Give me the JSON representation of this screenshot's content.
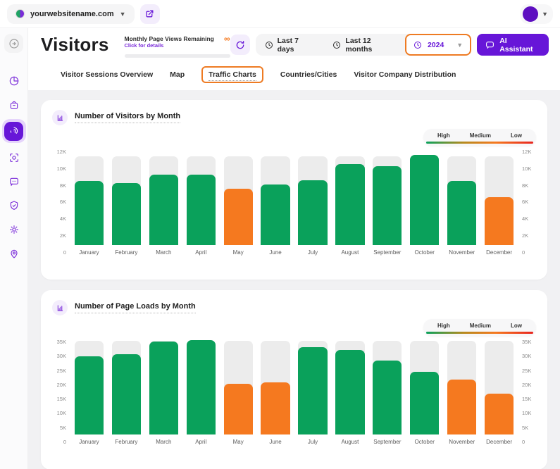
{
  "colors": {
    "brand_purple": "#6716d8",
    "brand_purple_light": "#f3edfc",
    "green": "#0aa15b",
    "orange": "#f5791f",
    "red": "#e8251f",
    "highlight_border": "#ee7b23",
    "bar_background": "#ececec",
    "page_background": "#f1f1f3"
  },
  "topbar": {
    "website_name": "yourwebsitename.com"
  },
  "header": {
    "title": "Visitors",
    "quota": {
      "label": "Monthly Page Views Remaining",
      "link": "Click for details",
      "value": "∞"
    },
    "range_buttons": {
      "last7": "Last 7 days",
      "last12": "Last 12 months",
      "year": "2024"
    },
    "ai_button": "AI Assistant"
  },
  "tabs": [
    {
      "label": "Visitor Sessions Overview",
      "active": false
    },
    {
      "label": "Map",
      "active": false
    },
    {
      "label": "Traffic Charts",
      "active": true
    },
    {
      "label": "Countries/Cities",
      "active": false
    },
    {
      "label": "Visitor Company Distribution",
      "active": false
    }
  ],
  "sidebar": {
    "items": [
      {
        "name": "collapse-sidebar",
        "active": false
      },
      {
        "name": "dashboard-pie",
        "active": false
      },
      {
        "name": "ecommerce-bag",
        "active": false
      },
      {
        "name": "visitors",
        "active": true
      },
      {
        "name": "behaviour-focus",
        "active": false
      },
      {
        "name": "communication-chat",
        "active": false
      },
      {
        "name": "privacy-shield",
        "active": false
      },
      {
        "name": "settings-gear",
        "active": false
      },
      {
        "name": "location-pin",
        "active": false
      }
    ]
  },
  "chart_data": [
    {
      "type": "bar",
      "title": "Number of Visitors by Month",
      "categories": [
        "January",
        "February",
        "March",
        "April",
        "May",
        "June",
        "July",
        "August",
        "September",
        "October",
        "November",
        "December"
      ],
      "values": [
        8000,
        7700,
        8800,
        8800,
        7000,
        7500,
        8100,
        10100,
        9800,
        11200,
        8000,
        6000
      ],
      "levels": [
        "high",
        "high",
        "high",
        "high",
        "medium",
        "high",
        "high",
        "high",
        "high",
        "high",
        "high",
        "medium"
      ],
      "background_max": 11000,
      "ylim": [
        0,
        12000
      ],
      "yticks": [
        "12K",
        "10K",
        "8K",
        "6K",
        "4K",
        "2K",
        "0"
      ],
      "legend": {
        "labels": [
          "High",
          "Medium",
          "Low"
        ],
        "position": "top-right",
        "gradient": [
          "#0aa15b",
          "#f5791f",
          "#e8251f"
        ]
      },
      "grid": false
    },
    {
      "type": "bar",
      "title": "Number of Page Loads by Month",
      "categories": [
        "January",
        "February",
        "March",
        "April",
        "May",
        "June",
        "July",
        "August",
        "September",
        "October",
        "November",
        "December"
      ],
      "values": [
        28500,
        29300,
        34000,
        34500,
        18500,
        19000,
        32000,
        31000,
        27000,
        23000,
        20000,
        15000
      ],
      "levels": [
        "high",
        "high",
        "high",
        "high",
        "medium",
        "medium",
        "high",
        "high",
        "high",
        "high",
        "medium",
        "medium"
      ],
      "background_max": 34300,
      "ylim": [
        0,
        35000
      ],
      "yticks": [
        "35K",
        "30K",
        "25K",
        "20K",
        "15K",
        "10K",
        "5K",
        "0"
      ],
      "legend": {
        "labels": [
          "High",
          "Medium",
          "Low"
        ],
        "position": "top-right",
        "gradient": [
          "#0aa15b",
          "#f5791f",
          "#e8251f"
        ]
      },
      "grid": false
    }
  ]
}
